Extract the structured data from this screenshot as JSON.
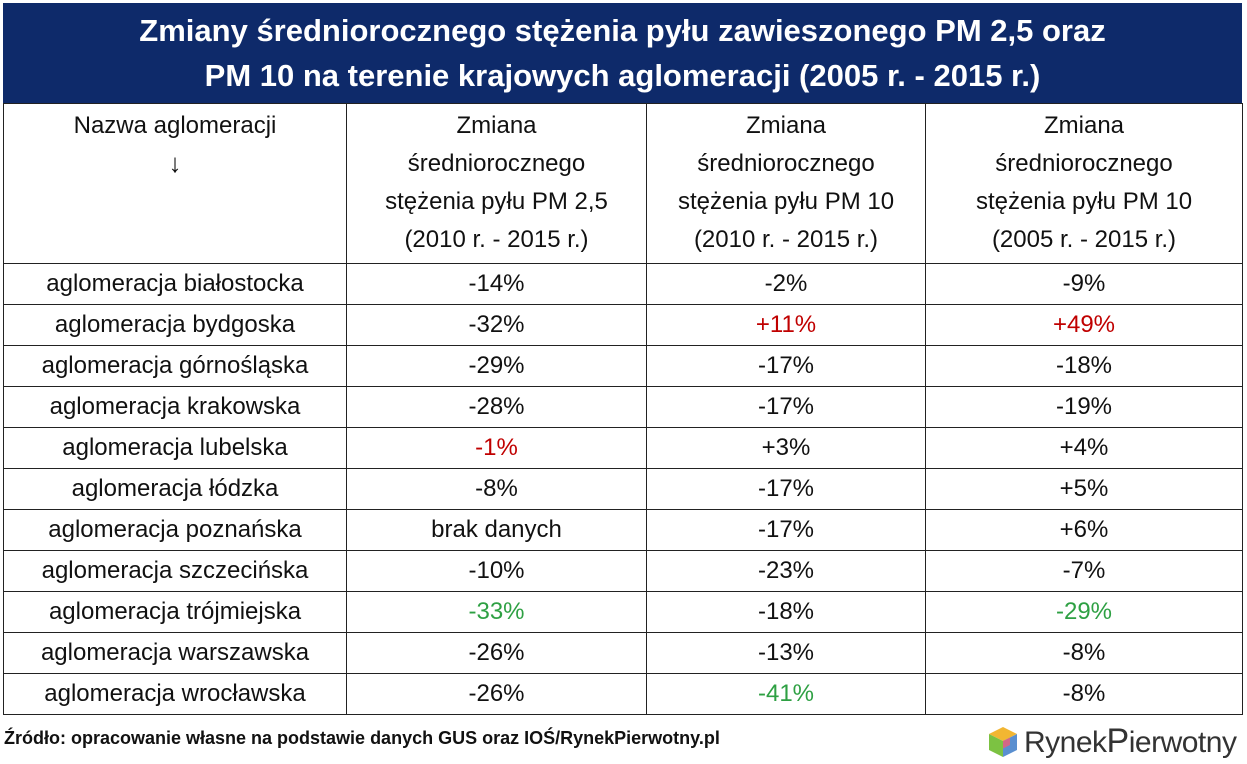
{
  "title": {
    "line1": "Zmiany średniorocznego stężenia pyłu zawieszonego PM 2,5 oraz",
    "line2": "PM 10 na terenie krajowych aglomeracji (2005 r. - 2015 r.)"
  },
  "header": {
    "col1": "Nazwa aglomeracji",
    "col1_arrow": "↓",
    "col2": [
      "Zmiana",
      "średniorocznego",
      "stężenia pyłu PM 2,5",
      "(2010 r. - 2015 r.)"
    ],
    "col3": [
      "Zmiana",
      "średniorocznego",
      "stężenia pyłu PM 10",
      "(2010 r. - 2015 r.)"
    ],
    "col4": [
      "Zmiana",
      "średniorocznego",
      "stężenia pyłu PM 10",
      "(2005 r. - 2015 r.)"
    ]
  },
  "rows": [
    {
      "name": "aglomeracja białostocka",
      "pm25": "-14%",
      "pm10_2010": "-2%",
      "pm10_2005": "-9%"
    },
    {
      "name": "aglomeracja bydgoska",
      "pm25": "-32%",
      "pm10_2010": "+11%",
      "pm10_2005": "+49%"
    },
    {
      "name": "aglomeracja górnośląska",
      "pm25": "-29%",
      "pm10_2010": "-17%",
      "pm10_2005": "-18%"
    },
    {
      "name": "aglomeracja krakowska",
      "pm25": "-28%",
      "pm10_2010": "-17%",
      "pm10_2005": "-19%"
    },
    {
      "name": "aglomeracja lubelska",
      "pm25": "-1%",
      "pm10_2010": "+3%",
      "pm10_2005": "+4%"
    },
    {
      "name": "aglomeracja łódzka",
      "pm25": "-8%",
      "pm10_2010": "-17%",
      "pm10_2005": "+5%"
    },
    {
      "name": "aglomeracja poznańska",
      "pm25": "brak danych",
      "pm10_2010": "-17%",
      "pm10_2005": "+6%"
    },
    {
      "name": "aglomeracja szczecińska",
      "pm25": "-10%",
      "pm10_2010": "-23%",
      "pm10_2005": "-7%"
    },
    {
      "name": "aglomeracja trójmiejska",
      "pm25": "-33%",
      "pm10_2010": "-18%",
      "pm10_2005": "-29%"
    },
    {
      "name": "aglomeracja warszawska",
      "pm25": "-26%",
      "pm10_2010": "-13%",
      "pm10_2005": "-8%"
    },
    {
      "name": "aglomeracja wrocławska",
      "pm25": "-26%",
      "pm10_2010": "-41%",
      "pm10_2005": "-8%"
    }
  ],
  "colors": {
    "title_bg": "#0e2a6a",
    "highlight_worst": "#c00000",
    "highlight_best": "#2ea043"
  },
  "source": "Źródło: opracowanie własne na podstawie danych GUS oraz IOŚ/RynekPierwotny.pl",
  "logo": {
    "part1": "Rynek",
    "part2": "P",
    "part3": "ierwotny",
    "icon": "cube-logo-icon"
  }
}
